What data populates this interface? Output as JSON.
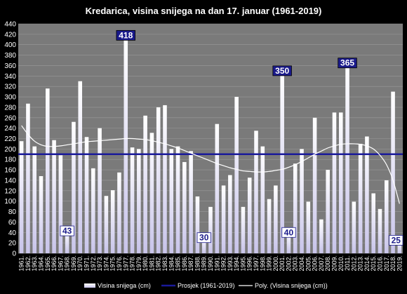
{
  "chart_data": {
    "type": "bar",
    "title": "Kredarica,  visina snijega na dan 17. januar (1961-2019)",
    "xlabel": "",
    "ylabel": "",
    "ylim": [
      0,
      440
    ],
    "ytick_step": 20,
    "grid": true,
    "legend_position": "bottom",
    "categories": [
      "1961.",
      "1962.",
      "1963.",
      "1964.",
      "1965.",
      "1966.",
      "1967.",
      "1968.",
      "1969.",
      "1970.",
      "1971.",
      "1972.",
      "1973.",
      "1974.",
      "1975.",
      "1976.",
      "1977.",
      "1978.",
      "1979.",
      "1980.",
      "1981.",
      "1982.",
      "1983.",
      "1984.",
      "1985.",
      "1986.",
      "1987.",
      "1988.",
      "1989.",
      "1990.",
      "1991.",
      "1992.",
      "1993.",
      "1994.",
      "1995.",
      "1996.",
      "1997.",
      "1998.",
      "1999.",
      "2000.",
      "2001.",
      "2002.",
      "2003.",
      "2004.",
      "2005.",
      "2006.",
      "2007.",
      "2008.",
      "2009.",
      "2010.",
      "2011.",
      "2012.",
      "2013.",
      "2014.",
      "2015.",
      "2016.",
      "2017.",
      "2018.",
      "2019."
    ],
    "series": [
      {
        "name": "Visina snijega (cm)",
        "type": "bar",
        "values": [
          215,
          287,
          205,
          148,
          316,
          217,
          188,
          43,
          252,
          330,
          223,
          163,
          240,
          110,
          121,
          155,
          418,
          203,
          200,
          264,
          231,
          280,
          284,
          200,
          205,
          175,
          196,
          109,
          30,
          89,
          248,
          130,
          150,
          300,
          89,
          145,
          235,
          205,
          104,
          130,
          350,
          40,
          172,
          200,
          99,
          260,
          65,
          160,
          270,
          270,
          365,
          99,
          210,
          224,
          115,
          85,
          140,
          310,
          25
        ]
      },
      {
        "name": "Prosjek (1961-2019)",
        "type": "line",
        "value": 190
      },
      {
        "name": "Poly. (Visina snijega (cm))",
        "type": "line",
        "values": [
          245,
          228,
          215,
          208,
          205,
          205,
          206,
          208,
          210,
          212,
          214,
          215,
          216,
          217,
          218,
          219,
          220,
          220,
          219,
          218,
          216,
          213,
          210,
          206,
          202,
          197,
          192,
          187,
          182,
          177,
          172,
          168,
          164,
          161,
          158,
          157,
          156,
          156,
          157,
          159,
          161,
          165,
          170,
          176,
          183,
          190,
          196,
          202,
          206,
          209,
          210,
          210,
          209,
          206,
          200,
          188,
          170,
          140,
          95
        ]
      }
    ],
    "annotations": [
      {
        "category": "1977.",
        "label": "418"
      },
      {
        "category": "1968.",
        "label": "43"
      },
      {
        "category": "1989.",
        "label": "30"
      },
      {
        "category": "2001.",
        "label": "350"
      },
      {
        "category": "2002.",
        "label": "40"
      },
      {
        "category": "2011.",
        "label": "365"
      },
      {
        "category": "2019.",
        "label": "25"
      }
    ]
  },
  "colors": {
    "background": "#000000",
    "plot_area": "#7a7a7a",
    "grid": "#9a9a9a",
    "bar_top": "#ffffff",
    "bar_bottom": "#c8c4ea",
    "average_line": "#1a1a9a",
    "trend_line": "#ffffff",
    "callout_dark_bg": "#1a1a8a",
    "callout_dark_text": "#ffffff",
    "callout_light_bg": "#ffffff",
    "callout_light_text": "#1a1a8a"
  }
}
